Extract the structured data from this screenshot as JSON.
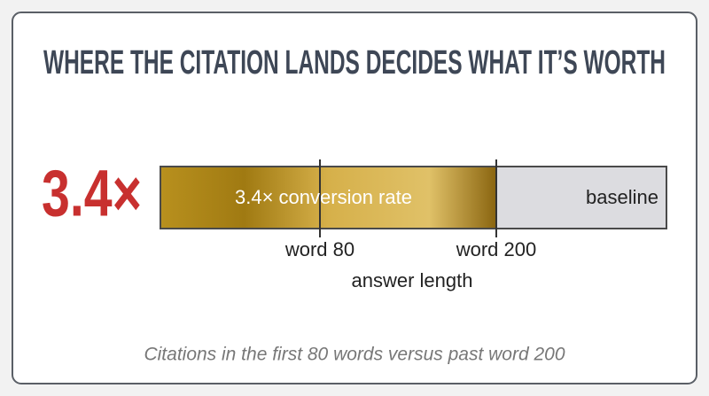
{
  "title": "WHERE THE CITATION LANDS DECIDES WHAT IT’S WORTH",
  "stat": "3.4×",
  "bar": {
    "segments": [
      {
        "label": "3.4× conversion rate"
      },
      {
        "label": "baseline"
      }
    ],
    "markers": [
      {
        "label": "word 80"
      },
      {
        "label": "word 200"
      }
    ],
    "axis_label": "answer length"
  },
  "caption": "Citations in the first 80 words versus past word 200"
}
